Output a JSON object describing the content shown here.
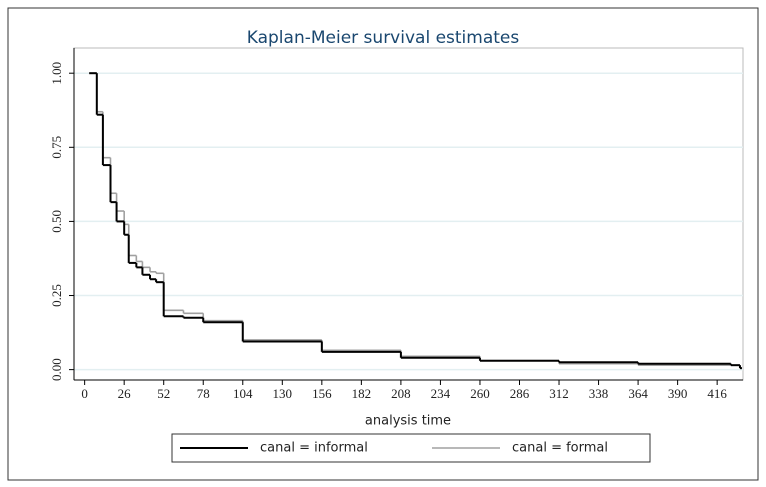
{
  "chart_data": {
    "type": "step",
    "title": "Kaplan-Meier survival estimates",
    "x_label": "analysis time",
    "xlim": [
      -7,
      433
    ],
    "ylim": [
      -0.035,
      1.085
    ],
    "xticks": [
      0,
      26,
      52,
      78,
      104,
      130,
      156,
      182,
      208,
      234,
      260,
      286,
      312,
      338,
      364,
      390,
      416
    ],
    "yticks": [
      {
        "value": 0,
        "label": "0.00"
      },
      {
        "value": 0.25,
        "label": "0.25"
      },
      {
        "value": 0.5,
        "label": "0.50"
      },
      {
        "value": 0.75,
        "label": "0.75"
      },
      {
        "value": 1,
        "label": "1.00"
      }
    ],
    "grid": true,
    "series": [
      {
        "name": "canal = informal",
        "color": "#000000",
        "x": [
          3,
          8,
          12,
          17,
          21,
          26,
          29,
          34,
          38,
          43,
          47,
          52,
          65,
          78,
          104,
          156,
          208,
          260,
          312,
          364,
          425,
          431
        ],
        "values": [
          1.0,
          0.86,
          0.69,
          0.565,
          0.5,
          0.455,
          0.36,
          0.345,
          0.32,
          0.305,
          0.295,
          0.18,
          0.175,
          0.16,
          0.095,
          0.06,
          0.04,
          0.03,
          0.025,
          0.02,
          0.015,
          0.005
        ]
      },
      {
        "name": "canal = formal",
        "color": "#a0a0a0",
        "x": [
          3,
          8,
          12,
          17,
          21,
          26,
          29,
          34,
          38,
          43,
          47,
          52,
          65,
          78,
          104,
          156,
          208,
          260,
          312,
          364,
          425,
          431
        ],
        "values": [
          1.0,
          0.87,
          0.715,
          0.595,
          0.535,
          0.49,
          0.385,
          0.365,
          0.345,
          0.33,
          0.325,
          0.2,
          0.19,
          0.165,
          0.1,
          0.065,
          0.045,
          0.03,
          0.02,
          0.015,
          0.015,
          0.005
        ]
      }
    ]
  }
}
